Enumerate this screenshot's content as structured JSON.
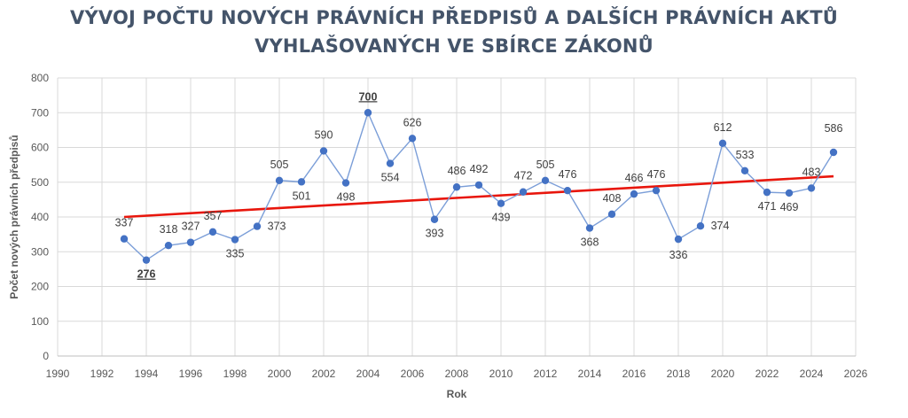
{
  "chart_data": {
    "type": "line",
    "title_lines": [
      "VÝVOJ POČTU NOVÝCH PRÁVNÍCH PŘEDPISŮ A DALŠÍCH PRÁVNÍCH AKTŮ",
      "VYHLAŠOVANÝCH VE SBÍRCE ZÁKONŮ"
    ],
    "xlabel": "Rok",
    "ylabel": "Počet nových právních předpisů",
    "xlim": [
      1990,
      2026
    ],
    "ylim": [
      0,
      800
    ],
    "x_ticks": [
      1990,
      1992,
      1994,
      1996,
      1998,
      2000,
      2002,
      2004,
      2006,
      2008,
      2010,
      2012,
      2014,
      2016,
      2018,
      2020,
      2022,
      2024,
      2026
    ],
    "y_ticks": [
      0,
      100,
      200,
      300,
      400,
      500,
      600,
      700,
      800
    ],
    "grid": true,
    "series": [
      {
        "color": "#4472c4",
        "x": [
          1993,
          1994,
          1995,
          1996,
          1997,
          1998,
          1999,
          2000,
          2001,
          2002,
          2003,
          2004,
          2005,
          2006,
          2007,
          2008,
          2009,
          2010,
          2011,
          2012,
          2013,
          2014,
          2015,
          2016,
          2017,
          2018,
          2019,
          2020,
          2021,
          2022,
          2023,
          2024,
          2025
        ],
        "values": [
          337,
          276,
          318,
          327,
          357,
          335,
          373,
          505,
          501,
          590,
          498,
          700,
          554,
          626,
          393,
          486,
          492,
          439,
          472,
          505,
          476,
          368,
          408,
          466,
          476,
          336,
          374,
          612,
          533,
          471,
          469,
          483,
          586
        ],
        "emphasized_labels": [
          276,
          700
        ]
      }
    ],
    "trendline": {
      "color": "#e8160c",
      "x": [
        1993,
        2025
      ],
      "y": [
        400,
        517
      ]
    }
  }
}
